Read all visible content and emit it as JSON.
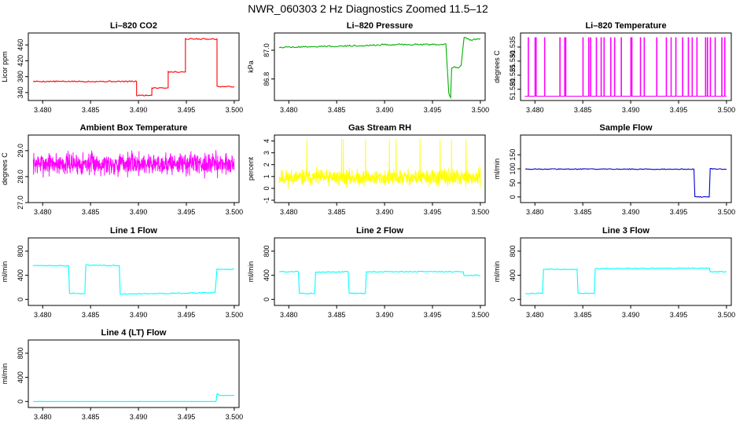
{
  "title": "NWR_060303  2 Hz Diagnostics Zoomed 11.5–12",
  "colors": {
    "red": "#ff0000",
    "green": "#00b000",
    "magenta": "#ff00ff",
    "yellow": "#ffff00",
    "blue": "#0000cc",
    "cyan": "#00ffff"
  },
  "chart_data": [
    {
      "type": "line",
      "title": "Li–820 CO2",
      "ylabel": "Licor ppm",
      "xlim": [
        3.4785,
        3.5005
      ],
      "ylim": [
        320,
        490
      ],
      "xticks": [
        "3.480",
        "3.485",
        "3.490",
        "3.495",
        "3.500"
      ],
      "yticks": [
        340,
        380,
        420,
        460
      ],
      "color": "red",
      "noise": 1.5,
      "series": [
        {
          "x": [
            3.479,
            3.4898,
            3.4898,
            3.4914,
            3.4914,
            3.4931,
            3.4931,
            3.4949,
            3.4949,
            3.4982,
            3.4982,
            3.5
          ],
          "y": [
            368,
            368,
            333,
            333,
            352,
            352,
            392,
            392,
            475,
            475,
            355,
            355
          ]
        }
      ]
    },
    {
      "type": "line",
      "title": "Li–820 Pressure",
      "ylabel": "kPa",
      "xlim": [
        3.4785,
        3.5005
      ],
      "ylim": [
        86.65,
        87.12
      ],
      "xticks": [
        "3.480",
        "3.485",
        "3.490",
        "3.495",
        "3.500"
      ],
      "yticks": [
        "86.8",
        "87.0"
      ],
      "color": "green",
      "noise": 0.005,
      "series": [
        {
          "x": [
            3.479,
            3.486,
            3.491,
            3.495,
            3.4964,
            3.4967,
            3.4969,
            3.497,
            3.4978,
            3.498,
            3.4983,
            3.499,
            3.5
          ],
          "y": [
            87.02,
            87.03,
            87.04,
            87.04,
            87.04,
            86.7,
            86.67,
            86.88,
            86.88,
            86.9,
            87.09,
            87.07,
            87.08
          ]
        }
      ]
    },
    {
      "type": "line",
      "title": "Li–820 Temperature",
      "ylabel": "degrees C",
      "xlim": [
        3.4785,
        3.5005
      ],
      "ylim": [
        51.516,
        51.54
      ],
      "xticks": [
        "3.480",
        "3.485",
        "3.490",
        "3.495",
        "3.500"
      ],
      "yticks": [
        "51.520",
        "51.525",
        "51.530",
        "51.535"
      ],
      "color": "magenta",
      "style": "spikes",
      "base": 51.5175,
      "peak": 51.5383,
      "spikes": [
        3.4793,
        3.48,
        3.4801,
        3.481,
        3.4826,
        3.4831,
        3.4832,
        3.485,
        3.4856,
        3.4858,
        3.4864,
        3.4869,
        3.4872,
        3.4879,
        3.4883,
        3.489,
        3.49,
        3.4901,
        3.491,
        3.4914,
        3.4927,
        3.4937,
        3.4942,
        3.4947,
        3.4954,
        3.496,
        3.4964,
        3.4969,
        3.4978,
        3.498,
        3.4983,
        3.4988,
        3.4995,
        3.4998
      ]
    },
    {
      "type": "line",
      "title": "Ambient Box Temperature",
      "ylabel": "degrees C",
      "xlim": [
        3.4785,
        3.5005
      ],
      "ylim": [
        27.0,
        29.6
      ],
      "xticks": [
        "3.480",
        "3.485",
        "3.490",
        "3.495",
        "3.500"
      ],
      "yticks": [
        "27.0",
        "28.0",
        "29.0"
      ],
      "color": "magenta",
      "style": "noise",
      "mean": 28.5,
      "amp": 0.35,
      "seed": 7
    },
    {
      "type": "line",
      "title": "Gas Stream RH",
      "ylabel": "percent",
      "xlim": [
        3.4785,
        3.5005
      ],
      "ylim": [
        -1.2,
        4.5
      ],
      "xticks": [
        "3.480",
        "3.485",
        "3.490",
        "3.495",
        "3.500"
      ],
      "yticks": [
        -1,
        0,
        1,
        2,
        3,
        4
      ],
      "color": "yellow",
      "style": "noise",
      "mean": 0.9,
      "amp": 0.55,
      "seed": 11,
      "spikes": [
        3.4819,
        3.4855,
        3.4857,
        3.488,
        3.4905,
        3.4912,
        3.4937,
        3.4958,
        3.497,
        3.4985
      ]
    },
    {
      "type": "line",
      "title": "Sample Flow",
      "ylabel": "ml/min",
      "xlim": [
        3.4785,
        3.5005
      ],
      "ylim": [
        -20,
        220
      ],
      "xticks": [
        "3.480",
        "3.485",
        "3.490",
        "3.495",
        "3.500"
      ],
      "yticks": [
        0,
        50,
        100,
        150
      ],
      "color": "blue",
      "noise": 1.5,
      "series": [
        {
          "x": [
            3.479,
            3.4966,
            3.4967,
            3.4982,
            3.4983,
            3.5
          ],
          "y": [
            99,
            99,
            0,
            0,
            100,
            98
          ]
        }
      ]
    },
    {
      "type": "line",
      "title": "Line 1 Flow",
      "ylabel": "ml/min",
      "xlim": [
        3.4785,
        3.5005
      ],
      "ylim": [
        -100,
        1020
      ],
      "xticks": [
        "3.480",
        "3.485",
        "3.490",
        "3.495",
        "3.500"
      ],
      "yticks": [
        0,
        400,
        800
      ],
      "color": "cyan",
      "noise": 8,
      "series": [
        {
          "x": [
            3.479,
            3.4827,
            3.4828,
            3.4844,
            3.4845,
            3.488,
            3.4881,
            3.498,
            3.4982,
            3.5
          ],
          "y": [
            560,
            560,
            100,
            100,
            570,
            560,
            90,
            110,
            500,
            500
          ]
        }
      ]
    },
    {
      "type": "line",
      "title": "Line 2 Flow",
      "ylabel": "ml/min",
      "xlim": [
        3.4785,
        3.5005
      ],
      "ylim": [
        -100,
        1020
      ],
      "xticks": [
        "3.480",
        "3.485",
        "3.490",
        "3.495",
        "3.500"
      ],
      "yticks": [
        0,
        400,
        800
      ],
      "color": "cyan",
      "noise": 8,
      "series": [
        {
          "x": [
            3.479,
            3.481,
            3.4811,
            3.4827,
            3.4828,
            3.4862,
            3.4863,
            3.488,
            3.4881,
            3.4982,
            3.4983,
            3.5
          ],
          "y": [
            460,
            460,
            100,
            100,
            450,
            460,
            100,
            100,
            460,
            460,
            400,
            400
          ]
        }
      ]
    },
    {
      "type": "line",
      "title": "Line 3 Flow",
      "ylabel": "ml/min",
      "xlim": [
        3.4785,
        3.5005
      ],
      "ylim": [
        -100,
        1020
      ],
      "xticks": [
        "3.480",
        "3.485",
        "3.490",
        "3.495",
        "3.500"
      ],
      "yticks": [
        0,
        400,
        800
      ],
      "color": "cyan",
      "noise": 8,
      "series": [
        {
          "x": [
            3.479,
            3.4808,
            3.4809,
            3.4844,
            3.4845,
            3.4862,
            3.4863,
            3.4982,
            3.4983,
            3.5
          ],
          "y": [
            100,
            100,
            500,
            500,
            100,
            100,
            510,
            520,
            460,
            460
          ]
        }
      ]
    },
    {
      "type": "line",
      "title": "Line 4 (LT) Flow",
      "ylabel": "ml/min",
      "xlim": [
        3.4785,
        3.5005
      ],
      "ylim": [
        -100,
        1020
      ],
      "xticks": [
        "3.480",
        "3.485",
        "3.490",
        "3.495",
        "3.500"
      ],
      "yticks": [
        0,
        400,
        800
      ],
      "color": "cyan",
      "noise": 1,
      "series": [
        {
          "x": [
            3.479,
            3.4981,
            3.4982,
            3.4985,
            3.5
          ],
          "y": [
            0,
            0,
            130,
            100,
            100
          ]
        }
      ]
    }
  ]
}
